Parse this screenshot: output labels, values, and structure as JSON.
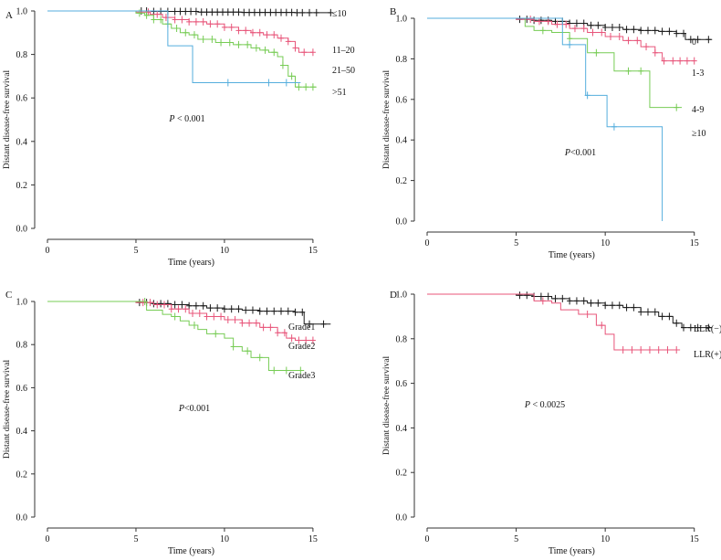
{
  "chart_data": [
    {
      "type": "line",
      "panel_label": "A",
      "ylabel": "Distant disease-free survival",
      "xlabel": "Time (years)",
      "xticks": [
        "0",
        "5",
        "10",
        "15"
      ],
      "yticks": [
        "0.0",
        "0.2",
        "0.4",
        "0.6",
        "0.8",
        "1.0"
      ],
      "xlim": [
        0,
        16.5
      ],
      "ylim": [
        0,
        1.0
      ],
      "annotation": {
        "italic": "P",
        "rest": " < 0.001"
      },
      "series": [
        {
          "name": "≤10",
          "color": "#1a1a1a",
          "x": [
            0,
            5.5,
            6.0,
            8.5,
            11.0,
            14.0,
            16.0
          ],
          "y": [
            1.0,
            1.0,
            0.998,
            0.995,
            0.993,
            0.992,
            0.992
          ],
          "censor": [
            5.3,
            5.6,
            6.0,
            6.4,
            6.8,
            7.2,
            7.5,
            7.8,
            8.1,
            8.4,
            8.7,
            9.0,
            9.3,
            9.6,
            9.9,
            10.2,
            10.5,
            10.8,
            11.1,
            11.4,
            11.7,
            12.0,
            12.3,
            12.6,
            12.9,
            13.2,
            13.5,
            13.8,
            14.1,
            14.4,
            14.8,
            15.2,
            16.0
          ]
        },
        {
          "name": "11–20",
          "color": "#e8557a",
          "x": [
            0,
            5.0,
            5.8,
            6.5,
            7.2,
            8.0,
            9.0,
            10.0,
            10.8,
            11.5,
            12.2,
            13.0,
            13.6,
            14.0,
            14.2,
            15.0
          ],
          "y": [
            1.0,
            0.995,
            0.985,
            0.97,
            0.96,
            0.95,
            0.94,
            0.925,
            0.91,
            0.9,
            0.89,
            0.875,
            0.86,
            0.83,
            0.81,
            0.81
          ],
          "censor": [
            5.7,
            6.2,
            6.7,
            7.2,
            7.6,
            8.0,
            8.4,
            8.8,
            9.2,
            9.6,
            10.0,
            10.4,
            10.8,
            11.2,
            11.6,
            12.0,
            12.4,
            12.8,
            13.2,
            13.6,
            14.0,
            14.5,
            15.0
          ]
        },
        {
          "name": "21–50",
          "color": "#77cc55",
          "x": [
            0,
            5.0,
            5.5,
            6.0,
            6.5,
            7.0,
            7.5,
            8.0,
            8.5,
            9.5,
            10.5,
            11.5,
            12.0,
            12.5,
            13.0,
            13.3,
            13.6,
            14.0,
            15.2
          ],
          "y": [
            1.0,
            0.99,
            0.98,
            0.96,
            0.94,
            0.92,
            0.9,
            0.89,
            0.87,
            0.855,
            0.845,
            0.83,
            0.82,
            0.81,
            0.79,
            0.75,
            0.7,
            0.65,
            0.65
          ],
          "censor": [
            5.2,
            5.6,
            6.0,
            6.4,
            6.8,
            7.3,
            7.8,
            8.3,
            8.8,
            9.3,
            9.8,
            10.3,
            10.8,
            11.3,
            11.8,
            12.3,
            12.8,
            13.3,
            13.8,
            14.2,
            14.6,
            15.0
          ]
        },
        {
          "name": ">51",
          "color": "#55aedd",
          "x": [
            0,
            6.5,
            6.8,
            8.0,
            8.2,
            14.3
          ],
          "y": [
            1.0,
            1.0,
            0.84,
            0.84,
            0.67,
            0.67
          ],
          "censor": [
            10.2,
            12.5,
            13.5
          ]
        }
      ]
    },
    {
      "type": "line",
      "panel_label": "B",
      "ylabel": "Distant disease-free survival",
      "xlabel": "Time (years)",
      "xticks": [
        "0",
        "5",
        "10",
        "15"
      ],
      "yticks": [
        "0.0",
        "0.2",
        "0.4",
        "0.6",
        "0.8",
        "1.0"
      ],
      "xlim": [
        0,
        16.5
      ],
      "ylim": [
        0,
        1.0
      ],
      "annotation": {
        "italic": "P",
        "rest": "<0.001"
      },
      "series": [
        {
          "name": "0",
          "color": "#1a1a1a",
          "x": [
            0,
            5.0,
            6.0,
            7.0,
            8.0,
            9.0,
            10.0,
            11.0,
            12.0,
            13.0,
            14.0,
            14.5,
            16.0
          ],
          "y": [
            1.0,
            0.995,
            0.99,
            0.985,
            0.975,
            0.965,
            0.955,
            0.945,
            0.94,
            0.935,
            0.925,
            0.895,
            0.895
          ],
          "censor": [
            5.2,
            5.6,
            6.0,
            6.4,
            6.8,
            7.2,
            7.6,
            8.0,
            8.4,
            8.8,
            9.2,
            9.6,
            10.0,
            10.4,
            10.8,
            11.2,
            11.6,
            12.0,
            12.4,
            12.8,
            13.2,
            13.6,
            14.0,
            14.4,
            14.8,
            15.2,
            15.8
          ]
        },
        {
          "name": "1-3",
          "color": "#e8557a",
          "x": [
            0,
            5.0,
            6.0,
            7.0,
            8.0,
            9.0,
            10.0,
            11.0,
            12.0,
            12.8,
            13.2,
            14.0,
            15.0
          ],
          "y": [
            1.0,
            0.995,
            0.985,
            0.97,
            0.95,
            0.93,
            0.91,
            0.89,
            0.86,
            0.83,
            0.79,
            0.79,
            0.79
          ],
          "censor": [
            5.8,
            6.3,
            6.8,
            7.3,
            7.8,
            8.3,
            8.8,
            9.3,
            9.8,
            10.3,
            10.8,
            11.3,
            11.8,
            12.3,
            12.8,
            13.3,
            13.8,
            14.2,
            14.6,
            15.0
          ]
        },
        {
          "name": "4-9",
          "color": "#77cc55",
          "x": [
            0,
            5.0,
            5.5,
            6.0,
            7.0,
            8.0,
            9.0,
            10.0,
            10.5,
            12.0,
            12.5,
            14.3
          ],
          "y": [
            1.0,
            1.0,
            0.96,
            0.94,
            0.93,
            0.9,
            0.83,
            0.83,
            0.74,
            0.74,
            0.56,
            0.56
          ],
          "censor": [
            6.5,
            8.0,
            9.5,
            11.3,
            12.0,
            14.0
          ]
        },
        {
          "name": "≥10",
          "color": "#55aedd",
          "x": [
            0,
            7.5,
            7.6,
            8.8,
            8.9,
            10.0,
            10.1,
            13.2,
            13.2
          ],
          "y": [
            1.0,
            1.0,
            0.87,
            0.87,
            0.62,
            0.62,
            0.465,
            0.465,
            0.0
          ],
          "censor": [
            8.0,
            9.0,
            10.5
          ]
        }
      ]
    },
    {
      "type": "line",
      "panel_label": "C",
      "ylabel": "Distant disease-free survival",
      "xlabel": "Time (years)",
      "xticks": [
        "0",
        "5",
        "10",
        "15"
      ],
      "yticks": [
        "0.0",
        "0.2",
        "0.4",
        "0.6",
        "0.8",
        "1.0"
      ],
      "xlim": [
        0,
        16.5
      ],
      "ylim": [
        0,
        1.0
      ],
      "annotation": {
        "italic": "P",
        "rest": "<0.001"
      },
      "series": [
        {
          "name": "Grade1",
          "color": "#1a1a1a",
          "x": [
            0,
            5.0,
            6.0,
            7.0,
            8.0,
            9.0,
            10.0,
            11.0,
            12.0,
            13.0,
            14.0,
            14.5,
            16.0
          ],
          "y": [
            1.0,
            0.995,
            0.99,
            0.985,
            0.98,
            0.97,
            0.965,
            0.96,
            0.955,
            0.955,
            0.95,
            0.895,
            0.895
          ],
          "censor": [
            5.2,
            5.6,
            6.0,
            6.4,
            6.8,
            7.2,
            7.6,
            8.0,
            8.4,
            8.8,
            9.2,
            9.6,
            10.0,
            10.4,
            10.8,
            11.2,
            11.6,
            12.0,
            12.4,
            12.8,
            13.2,
            13.6,
            14.0,
            14.4,
            14.8,
            15.6
          ]
        },
        {
          "name": "Grade2",
          "color": "#e8557a",
          "x": [
            0,
            5.0,
            6.0,
            7.0,
            8.0,
            9.0,
            10.0,
            11.0,
            12.0,
            13.0,
            13.5,
            14.0,
            15.0
          ],
          "y": [
            1.0,
            0.995,
            0.985,
            0.965,
            0.945,
            0.93,
            0.915,
            0.9,
            0.88,
            0.855,
            0.83,
            0.82,
            0.82
          ],
          "censor": [
            5.4,
            5.8,
            6.2,
            6.6,
            7.0,
            7.4,
            7.8,
            8.2,
            8.6,
            9.0,
            9.4,
            9.8,
            10.2,
            10.6,
            11.0,
            11.4,
            11.8,
            12.2,
            12.6,
            13.0,
            13.4,
            13.8,
            14.2,
            14.6,
            15.0
          ]
        },
        {
          "name": "Grade3",
          "color": "#77cc55",
          "x": [
            0,
            5.0,
            5.6,
            6.5,
            7.0,
            7.5,
            8.0,
            8.5,
            9.0,
            10.0,
            10.5,
            11.0,
            11.5,
            12.0,
            12.5,
            14.5
          ],
          "y": [
            1.0,
            1.0,
            0.96,
            0.94,
            0.93,
            0.91,
            0.89,
            0.87,
            0.85,
            0.83,
            0.79,
            0.77,
            0.74,
            0.74,
            0.68,
            0.68
          ],
          "censor": [
            5.5,
            7.2,
            8.3,
            9.5,
            10.5,
            11.3,
            12.0,
            12.8,
            13.5,
            14.3
          ]
        }
      ]
    },
    {
      "type": "line",
      "panel_label": "D",
      "ylabel": "Distant disease-free survival",
      "xlabel": "Time (years)",
      "xticks": [
        "0",
        "5",
        "10",
        "15"
      ],
      "yticks": [
        "0.0",
        "0.2",
        "0.4",
        "0.6",
        "0.8",
        "1.0"
      ],
      "xlim": [
        0,
        16.5
      ],
      "ylim": [
        0,
        1.0
      ],
      "annotation": {
        "italic": "P",
        "rest": " < 0.0025"
      },
      "series": [
        {
          "name": "LLR(−)",
          "color": "#1a1a1a",
          "x": [
            0,
            5.0,
            6.0,
            7.0,
            8.0,
            9.0,
            10.0,
            11.0,
            12.0,
            13.0,
            13.8,
            14.3,
            16.0
          ],
          "y": [
            1.0,
            0.995,
            0.99,
            0.98,
            0.97,
            0.96,
            0.95,
            0.94,
            0.92,
            0.9,
            0.87,
            0.85,
            0.85
          ],
          "censor": [
            5.2,
            5.6,
            6.0,
            6.4,
            6.8,
            7.2,
            7.6,
            8.0,
            8.4,
            8.8,
            9.2,
            9.6,
            10.0,
            10.4,
            10.8,
            11.2,
            11.6,
            12.0,
            12.4,
            12.8,
            13.2,
            13.6,
            14.0,
            14.4,
            14.8,
            15.2,
            15.8
          ]
        },
        {
          "name": "LLR(+)",
          "color": "#e8557a",
          "x": [
            0,
            5.0,
            6.0,
            7.0,
            7.5,
            8.5,
            9.5,
            10.0,
            10.5,
            14.2
          ],
          "y": [
            1.0,
            1.0,
            0.97,
            0.96,
            0.93,
            0.91,
            0.86,
            0.82,
            0.75,
            0.75
          ],
          "censor": [
            6.5,
            9.0,
            9.8,
            11.0,
            11.5,
            12.0,
            12.5,
            13.0,
            13.5,
            14.0
          ]
        }
      ]
    }
  ]
}
